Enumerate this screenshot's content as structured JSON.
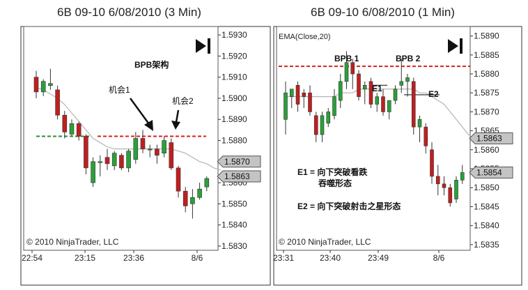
{
  "chart_data": [
    {
      "type": "candlestick",
      "title": "6B 09-10  6/08/2010 (3 Min)",
      "x_tick_labels": [
        "22:54",
        "23:15",
        "23:36",
        "8/6"
      ],
      "y_tick_labels": [
        "1.5930",
        "1.5920",
        "1.5910",
        "1.5900",
        "1.5890",
        "1.5880",
        "1.5870",
        "1.5860",
        "1.5850",
        "1.5840",
        "1.5830"
      ],
      "ylim": [
        1.5828,
        1.5934
      ],
      "price_tags": [
        "1.5870",
        "1.5863"
      ],
      "annotations": {
        "bpb": "BPB架构",
        "chance1": "机会1",
        "chance2": "机会2"
      },
      "copyright": "© 2010 NinjaTrader, LLC",
      "colors": {
        "up": "#2aa03a",
        "down": "#c01f1f",
        "ema": "#b4b4b4",
        "green_line": "#2e8b2e",
        "red_line": "#d42020"
      },
      "levels": {
        "green_dashed": 1.5882,
        "red_dashed": 1.5882
      },
      "ema": [
        1.5905,
        1.5904,
        1.5902,
        1.59,
        1.5897,
        1.5893,
        1.5889,
        1.5885,
        1.5881,
        1.5879,
        1.5877,
        1.5876,
        1.5876,
        1.5876,
        1.5876,
        1.5876,
        1.5876,
        1.5876,
        1.5876,
        1.5876,
        1.5875,
        1.5874,
        1.5872,
        1.587,
        1.5869,
        1.5867,
        1.5866
      ],
      "candles": [
        {
          "o": 1.591,
          "h": 1.5913,
          "l": 1.59,
          "c": 1.5903
        },
        {
          "o": 1.5903,
          "h": 1.5909,
          "l": 1.5901,
          "c": 1.5908
        },
        {
          "o": 1.5906,
          "h": 1.5914,
          "l": 1.5904,
          "c": 1.5907
        },
        {
          "o": 1.5904,
          "h": 1.5906,
          "l": 1.589,
          "c": 1.5892
        },
        {
          "o": 1.5892,
          "h": 1.5894,
          "l": 1.5881,
          "c": 1.5884
        },
        {
          "o": 1.5883,
          "h": 1.589,
          "l": 1.5882,
          "c": 1.5888
        },
        {
          "o": 1.5888,
          "h": 1.5889,
          "l": 1.588,
          "c": 1.5882
        },
        {
          "o": 1.5882,
          "h": 1.5883,
          "l": 1.5864,
          "c": 1.5867
        },
        {
          "o": 1.586,
          "h": 1.5872,
          "l": 1.5858,
          "c": 1.587
        },
        {
          "o": 1.587,
          "h": 1.5873,
          "l": 1.5863,
          "c": 1.587
        },
        {
          "o": 1.5872,
          "h": 1.5876,
          "l": 1.5866,
          "c": 1.5869
        },
        {
          "o": 1.5868,
          "h": 1.5875,
          "l": 1.5866,
          "c": 1.5874
        },
        {
          "o": 1.5873,
          "h": 1.5874,
          "l": 1.5866,
          "c": 1.5867
        },
        {
          "o": 1.5867,
          "h": 1.5876,
          "l": 1.5865,
          "c": 1.5875
        },
        {
          "o": 1.5871,
          "h": 1.5884,
          "l": 1.5869,
          "c": 1.5881
        },
        {
          "o": 1.5881,
          "h": 1.5885,
          "l": 1.5874,
          "c": 1.5876
        },
        {
          "o": 1.5876,
          "h": 1.5878,
          "l": 1.5872,
          "c": 1.5876
        },
        {
          "o": 1.5876,
          "h": 1.5878,
          "l": 1.5869,
          "c": 1.5873
        },
        {
          "o": 1.5874,
          "h": 1.5882,
          "l": 1.5872,
          "c": 1.588
        },
        {
          "o": 1.5879,
          "h": 1.5881,
          "l": 1.5866,
          "c": 1.5867
        },
        {
          "o": 1.5867,
          "h": 1.5868,
          "l": 1.5853,
          "c": 1.5856
        },
        {
          "o": 1.5856,
          "h": 1.5858,
          "l": 1.5846,
          "c": 1.5849
        },
        {
          "o": 1.585,
          "h": 1.5857,
          "l": 1.5843,
          "c": 1.5853
        },
        {
          "o": 1.5853,
          "h": 1.586,
          "l": 1.5852,
          "c": 1.5857
        },
        {
          "o": 1.5858,
          "h": 1.5863,
          "l": 1.5856,
          "c": 1.5862
        }
      ]
    },
    {
      "type": "candlestick",
      "title": "6B 09-10  6/08/2010 (1 Min)",
      "indicator_label": "EMA(Close,20)",
      "x_tick_labels": [
        "23:31",
        "23:40",
        "23:49",
        "8/6"
      ],
      "y_tick_labels": [
        "1.5890",
        "1.5885",
        "1.5880",
        "1.5875",
        "1.5870",
        "1.5865",
        "1.5860",
        "1.5855",
        "1.5850",
        "1.5845",
        "1.5840",
        "1.5835"
      ],
      "ylim": [
        1.58335,
        1.58925
      ],
      "price_tags": [
        "1.5863",
        "1.5854"
      ],
      "annotations": {
        "bpb1": "BPB 1",
        "bpb2": "BPB 2",
        "e1": "E1",
        "e2": "E2",
        "e1_note_a": "E1 = 向下突破看跌",
        "e1_note_b": "吞噬形态",
        "e2_note": "E2 = 向下突破射击之星形态"
      },
      "copyright": "© 2010 NinjaTrader, LLC",
      "colors": {
        "up": "#2aa03a",
        "down": "#c01f1f",
        "ema": "#b4b4b4",
        "red_line": "#d42020"
      },
      "levels": {
        "red_dashed": 1.5882,
        "e1_line": 1.5877,
        "e2_line": 1.58745
      },
      "ema": [
        1.5874,
        1.5874,
        1.5874,
        1.5874,
        1.5874,
        1.5874,
        1.5874,
        1.5874,
        1.5874,
        1.5875,
        1.5875,
        1.5875,
        1.5876,
        1.5876,
        1.5876,
        1.5876,
        1.5876,
        1.5876,
        1.5876,
        1.5876,
        1.5876,
        1.5876,
        1.5875,
        1.5875,
        1.5874,
        1.5873,
        1.5872,
        1.587,
        1.5868,
        1.5866,
        1.5864,
        1.5863
      ],
      "candles": [
        {
          "o": 1.5868,
          "h": 1.5878,
          "l": 1.5864,
          "c": 1.5875
        },
        {
          "o": 1.5874,
          "h": 1.5876,
          "l": 1.5871,
          "c": 1.5876
        },
        {
          "o": 1.5877,
          "h": 1.5878,
          "l": 1.587,
          "c": 1.5872
        },
        {
          "o": 1.5875,
          "h": 1.5876,
          "l": 1.5871,
          "c": 1.5874
        },
        {
          "o": 1.5875,
          "h": 1.5877,
          "l": 1.5869,
          "c": 1.587
        },
        {
          "o": 1.5869,
          "h": 1.587,
          "l": 1.5862,
          "c": 1.5864
        },
        {
          "o": 1.5864,
          "h": 1.587,
          "l": 1.5862,
          "c": 1.5869
        },
        {
          "o": 1.5867,
          "h": 1.5871,
          "l": 1.5866,
          "c": 1.587
        },
        {
          "o": 1.5869,
          "h": 1.5876,
          "l": 1.5868,
          "c": 1.5874
        },
        {
          "o": 1.5873,
          "h": 1.588,
          "l": 1.5871,
          "c": 1.5878
        },
        {
          "o": 1.5878,
          "h": 1.5886,
          "l": 1.5876,
          "c": 1.5883
        },
        {
          "o": 1.5883,
          "h": 1.5884,
          "l": 1.5876,
          "c": 1.588
        },
        {
          "o": 1.588,
          "h": 1.5881,
          "l": 1.5873,
          "c": 1.5874
        },
        {
          "o": 1.5876,
          "h": 1.5878,
          "l": 1.5872,
          "c": 1.5877
        },
        {
          "o": 1.5878,
          "h": 1.5879,
          "l": 1.5871,
          "c": 1.5872
        },
        {
          "o": 1.5872,
          "h": 1.5875,
          "l": 1.587,
          "c": 1.5874
        },
        {
          "o": 1.5874,
          "h": 1.5876,
          "l": 1.5869,
          "c": 1.587
        },
        {
          "o": 1.587,
          "h": 1.5873,
          "l": 1.5868,
          "c": 1.5873
        },
        {
          "o": 1.5873,
          "h": 1.5877,
          "l": 1.5872,
          "c": 1.5876
        },
        {
          "o": 1.5877,
          "h": 1.5884,
          "l": 1.5875,
          "c": 1.5878
        },
        {
          "o": 1.5878,
          "h": 1.588,
          "l": 1.5874,
          "c": 1.5879
        },
        {
          "o": 1.5878,
          "h": 1.5879,
          "l": 1.5864,
          "c": 1.5866
        },
        {
          "o": 1.5866,
          "h": 1.5869,
          "l": 1.5862,
          "c": 1.5868
        },
        {
          "o": 1.5866,
          "h": 1.5867,
          "l": 1.5859,
          "c": 1.5861
        },
        {
          "o": 1.586,
          "h": 1.5862,
          "l": 1.5851,
          "c": 1.5853
        },
        {
          "o": 1.5853,
          "h": 1.5856,
          "l": 1.5848,
          "c": 1.5851
        },
        {
          "o": 1.5851,
          "h": 1.5853,
          "l": 1.5848,
          "c": 1.585
        },
        {
          "o": 1.585,
          "h": 1.5851,
          "l": 1.5845,
          "c": 1.5846
        },
        {
          "o": 1.5847,
          "h": 1.5853,
          "l": 1.5846,
          "c": 1.5852
        },
        {
          "o": 1.5852,
          "h": 1.5856,
          "l": 1.5851,
          "c": 1.5854
        }
      ]
    }
  ]
}
